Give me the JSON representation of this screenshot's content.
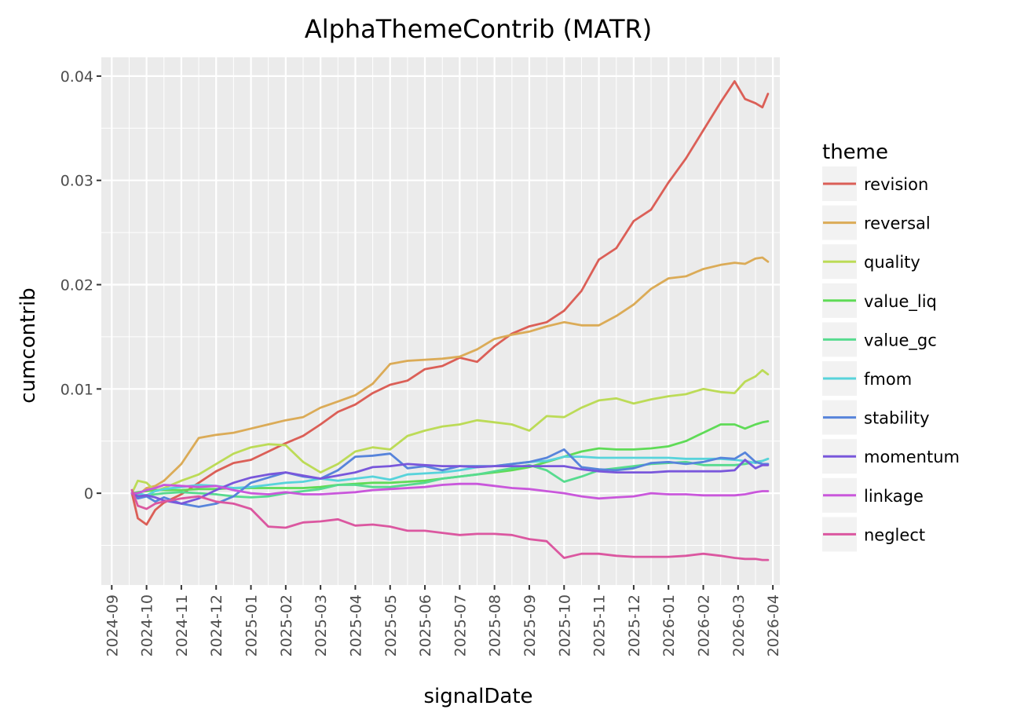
{
  "chart_data": {
    "type": "line",
    "title": "AlphaThemeContrib (MATR)",
    "xlabel": "signalDate",
    "ylabel": "cumcontrib",
    "x_unit": "months since 2024-09",
    "xlim": [
      -0.3,
      19.2
    ],
    "ylim": [
      -0.0088,
      0.0418
    ],
    "grid": true,
    "x_ticks": [
      {
        "value": 0,
        "label": "2024-09"
      },
      {
        "value": 1,
        "label": "2024-10"
      },
      {
        "value": 2,
        "label": "2024-11"
      },
      {
        "value": 3,
        "label": "2024-12"
      },
      {
        "value": 4,
        "label": "2025-01"
      },
      {
        "value": 5,
        "label": "2025-02"
      },
      {
        "value": 6,
        "label": "2025-03"
      },
      {
        "value": 7,
        "label": "2025-04"
      },
      {
        "value": 8,
        "label": "2025-05"
      },
      {
        "value": 9,
        "label": "2025-06"
      },
      {
        "value": 10,
        "label": "2025-07"
      },
      {
        "value": 11,
        "label": "2025-08"
      },
      {
        "value": 12,
        "label": "2025-09"
      },
      {
        "value": 13,
        "label": "2025-10"
      },
      {
        "value": 14,
        "label": "2025-11"
      },
      {
        "value": 15,
        "label": "2025-12"
      },
      {
        "value": 16,
        "label": "2026-01"
      },
      {
        "value": 17,
        "label": "2026-02"
      },
      {
        "value": 18,
        "label": "2026-03"
      },
      {
        "value": 19,
        "label": "2026-04"
      }
    ],
    "y_ticks": [
      {
        "value": 0,
        "label": "0"
      },
      {
        "value": 0.01,
        "label": "0.01"
      },
      {
        "value": 0.02,
        "label": "0.02"
      },
      {
        "value": 0.03,
        "label": "0.03"
      },
      {
        "value": 0.04,
        "label": "0.04"
      }
    ],
    "legend": {
      "title": "theme",
      "position": "right"
    },
    "x": [
      0.58,
      0.75,
      1.0,
      1.25,
      1.5,
      2.0,
      2.5,
      3.0,
      3.5,
      4.0,
      4.5,
      5.0,
      5.5,
      6.0,
      6.5,
      7.0,
      7.5,
      8.0,
      8.5,
      9.0,
      9.5,
      10.0,
      10.5,
      11.0,
      11.5,
      12.0,
      12.5,
      13.0,
      13.5,
      14.0,
      14.5,
      15.0,
      15.5,
      16.0,
      16.5,
      17.0,
      17.5,
      17.9,
      18.2,
      18.5,
      18.7,
      18.86
    ],
    "series": [
      {
        "name": "revision",
        "color": "#db5f57",
        "values": [
          0.0,
          -0.0024,
          -0.003,
          -0.0016,
          -0.0009,
          -0.0001,
          0.001,
          0.0021,
          0.0029,
          0.0032,
          0.004,
          0.0048,
          0.0055,
          0.0066,
          0.0078,
          0.0085,
          0.0096,
          0.0104,
          0.0108,
          0.0119,
          0.0122,
          0.013,
          0.0126,
          0.0141,
          0.0153,
          0.016,
          0.0164,
          0.0175,
          0.0194,
          0.0224,
          0.0235,
          0.0261,
          0.0272,
          0.0298,
          0.0321,
          0.0348,
          0.0375,
          0.0395,
          0.0378,
          0.0374,
          0.037,
          0.0383
        ]
      },
      {
        "name": "reversal",
        "color": "#dbab57",
        "values": [
          0.0,
          -0.0002,
          0.0005,
          0.0007,
          0.0012,
          0.0028,
          0.0053,
          0.0056,
          0.0058,
          0.0062,
          0.0066,
          0.007,
          0.0073,
          0.0082,
          0.0088,
          0.0094,
          0.0105,
          0.0124,
          0.0127,
          0.0128,
          0.0129,
          0.0131,
          0.0138,
          0.0148,
          0.0152,
          0.0155,
          0.016,
          0.0164,
          0.0161,
          0.0161,
          0.017,
          0.0181,
          0.0196,
          0.0206,
          0.0208,
          0.0215,
          0.0219,
          0.0221,
          0.022,
          0.0225,
          0.0226,
          0.0222
        ]
      },
      {
        "name": "quality",
        "color": "#bcdb57",
        "values": [
          0.0,
          0.0012,
          0.001,
          0.0002,
          0.0005,
          0.0012,
          0.0018,
          0.0028,
          0.0038,
          0.0044,
          0.0047,
          0.0046,
          0.003,
          0.002,
          0.0028,
          0.004,
          0.0044,
          0.0042,
          0.0055,
          0.006,
          0.0064,
          0.0066,
          0.007,
          0.0068,
          0.0066,
          0.006,
          0.0074,
          0.0073,
          0.0082,
          0.0089,
          0.0091,
          0.0086,
          0.009,
          0.0093,
          0.0095,
          0.01,
          0.0097,
          0.0096,
          0.0107,
          0.0112,
          0.0118,
          0.0114
        ]
      },
      {
        "name": "value_liq",
        "color": "#5fdb57",
        "values": [
          0.0,
          0.0001,
          0.0002,
          0.0003,
          0.0003,
          0.0003,
          0.0004,
          0.0004,
          0.0005,
          0.0005,
          0.0005,
          0.0005,
          0.0005,
          0.0006,
          0.0008,
          0.0009,
          0.001,
          0.001,
          0.0011,
          0.0012,
          0.0014,
          0.0016,
          0.0018,
          0.002,
          0.0022,
          0.0025,
          0.003,
          0.0035,
          0.004,
          0.0043,
          0.0042,
          0.0042,
          0.0043,
          0.0045,
          0.005,
          0.0058,
          0.0066,
          0.0066,
          0.0062,
          0.0066,
          0.0068,
          0.0069
        ]
      },
      {
        "name": "value_gc",
        "color": "#57db8f",
        "values": [
          0.0,
          -0.0001,
          -0.0002,
          -0.0001,
          0.0,
          0.0001,
          0.0,
          -0.0001,
          -0.0003,
          -0.0004,
          -0.0003,
          0.0,
          0.0002,
          0.0004,
          0.0008,
          0.0008,
          0.0006,
          0.0006,
          0.0008,
          0.001,
          0.0014,
          0.0016,
          0.0018,
          0.0021,
          0.0024,
          0.0027,
          0.0022,
          0.0011,
          0.0016,
          0.0022,
          0.0024,
          0.0026,
          0.0028,
          0.0029,
          0.003,
          0.0027,
          0.0027,
          0.0027,
          0.0028,
          0.003,
          0.0031,
          0.0033
        ]
      },
      {
        "name": "fmom",
        "color": "#57d3db",
        "values": [
          0.0,
          0.0,
          -0.0002,
          0.0002,
          0.0004,
          0.0006,
          0.0008,
          0.0007,
          0.0005,
          0.0006,
          0.0008,
          0.001,
          0.0011,
          0.0014,
          0.0012,
          0.0014,
          0.0016,
          0.0013,
          0.0018,
          0.0019,
          0.002,
          0.0022,
          0.0025,
          0.0026,
          0.0028,
          0.003,
          0.0031,
          0.0035,
          0.0035,
          0.0034,
          0.0034,
          0.0034,
          0.0034,
          0.0034,
          0.0033,
          0.0033,
          0.0033,
          0.0032,
          0.0031,
          0.0029,
          0.0031,
          0.0033
        ]
      },
      {
        "name": "stability",
        "color": "#5784db",
        "values": [
          0.0,
          -0.0005,
          -0.0003,
          -0.0008,
          -0.0004,
          -0.001,
          -0.0013,
          -0.001,
          -0.0003,
          0.001,
          0.0015,
          0.002,
          0.0016,
          0.0014,
          0.0022,
          0.0035,
          0.0036,
          0.0038,
          0.0024,
          0.0026,
          0.0022,
          0.0026,
          0.0026,
          0.0026,
          0.0028,
          0.003,
          0.0034,
          0.0042,
          0.0025,
          0.0023,
          0.0022,
          0.0024,
          0.0029,
          0.003,
          0.0028,
          0.003,
          0.0034,
          0.0033,
          0.0039,
          0.003,
          0.0028,
          0.0028
        ]
      },
      {
        "name": "momentum",
        "color": "#7957db",
        "values": [
          0.0,
          -0.0003,
          -0.0002,
          -0.0004,
          -0.0007,
          -0.001,
          -0.0005,
          0.0003,
          0.001,
          0.0015,
          0.0018,
          0.002,
          0.0017,
          0.0014,
          0.0017,
          0.002,
          0.0025,
          0.0026,
          0.0028,
          0.0027,
          0.0026,
          0.0026,
          0.0025,
          0.0026,
          0.0026,
          0.0026,
          0.0026,
          0.0026,
          0.0023,
          0.0021,
          0.002,
          0.002,
          0.002,
          0.0021,
          0.0021,
          0.0021,
          0.0021,
          0.0022,
          0.0032,
          0.0024,
          0.0027,
          0.0027
        ]
      },
      {
        "name": "linkage",
        "color": "#c957db",
        "values": [
          0.0,
          0.0,
          0.0003,
          0.0005,
          0.0008,
          0.0007,
          0.0006,
          0.0007,
          0.0003,
          0.0,
          -0.0001,
          0.0001,
          -0.0001,
          -0.0001,
          0.0,
          0.0001,
          0.0003,
          0.0004,
          0.0005,
          0.0006,
          0.0008,
          0.0009,
          0.0009,
          0.0007,
          0.0005,
          0.0004,
          0.0002,
          0.0,
          -0.0003,
          -0.0005,
          -0.0004,
          -0.0003,
          0.0,
          -0.0001,
          -0.0001,
          -0.0002,
          -0.0002,
          -0.0002,
          -0.0001,
          0.0001,
          0.0002,
          0.0002
        ]
      },
      {
        "name": "neglect",
        "color": "#db57a0",
        "values": [
          0.0003,
          -0.0012,
          -0.0015,
          -0.001,
          -0.0008,
          -0.0005,
          -0.0003,
          -0.0008,
          -0.001,
          -0.0015,
          -0.0032,
          -0.0033,
          -0.0028,
          -0.0027,
          -0.0025,
          -0.0031,
          -0.003,
          -0.0032,
          -0.0036,
          -0.0036,
          -0.0038,
          -0.004,
          -0.0039,
          -0.0039,
          -0.004,
          -0.0044,
          -0.0046,
          -0.0062,
          -0.0058,
          -0.0058,
          -0.006,
          -0.0061,
          -0.0061,
          -0.0061,
          -0.006,
          -0.0058,
          -0.006,
          -0.0062,
          -0.0063,
          -0.0063,
          -0.0064,
          -0.0064
        ]
      }
    ]
  }
}
